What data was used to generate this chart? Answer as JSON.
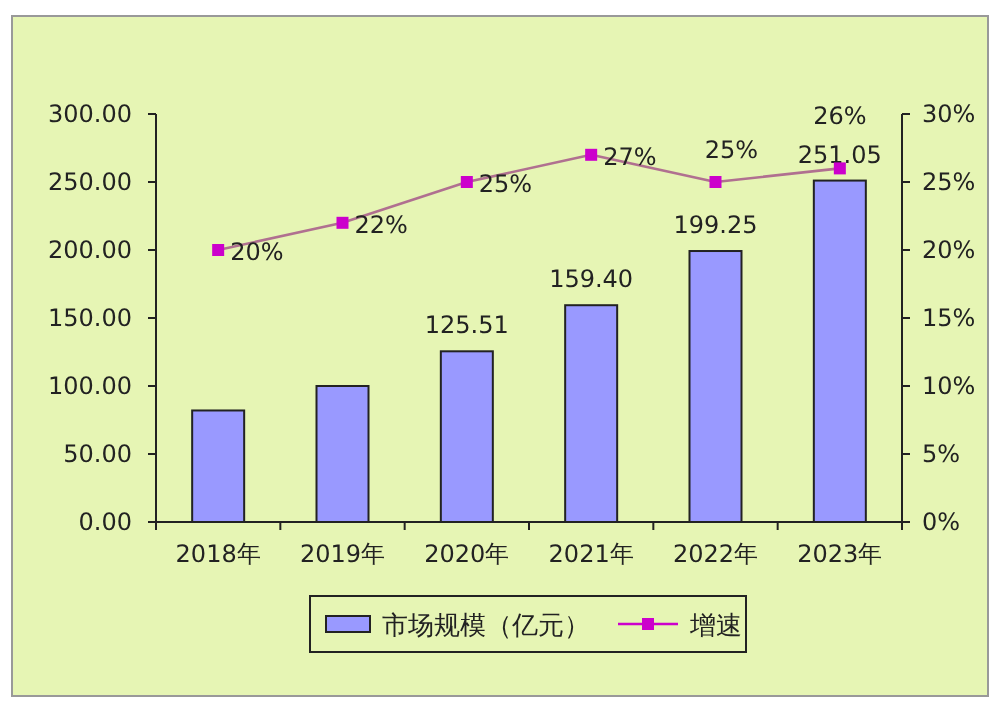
{
  "chart_data": {
    "type": "bar",
    "categories": [
      "2018年",
      "2019年",
      "2020年",
      "2021年",
      "2022年",
      "2023年"
    ],
    "series": [
      {
        "name": "市场规模（亿元）",
        "color": "#9999ff",
        "values": [
          82,
          100,
          125.51,
          159.4,
          199.25,
          251.05
        ],
        "value_labels": [
          null,
          null,
          "125.51",
          "159.40",
          "199.25",
          "251.05"
        ]
      },
      {
        "name": "增速",
        "type": "line",
        "axis": "y2",
        "color": "#cc00cc",
        "marker": "square",
        "values": [
          20,
          22,
          25,
          27,
          25,
          26
        ],
        "value_labels": [
          "20%",
          "22%",
          "25%",
          "27%",
          "25%",
          "26%"
        ]
      }
    ],
    "ylim": [
      0,
      300
    ],
    "yticks": [
      {
        "value": 0,
        "label": "0.00"
      },
      {
        "value": 50,
        "label": "50.00"
      },
      {
        "value": 100,
        "label": "100.00"
      },
      {
        "value": 150,
        "label": "150.00"
      },
      {
        "value": 200,
        "label": "200.00"
      },
      {
        "value": 250,
        "label": "250.00"
      },
      {
        "value": 300,
        "label": "300.00"
      }
    ],
    "y2lim": [
      0,
      30
    ],
    "y2ticks": [
      {
        "value": 0,
        "label": "0%"
      },
      {
        "value": 5,
        "label": "5%"
      },
      {
        "value": 10,
        "label": "10%"
      },
      {
        "value": 15,
        "label": "15%"
      },
      {
        "value": 20,
        "label": "20%"
      },
      {
        "value": 25,
        "label": "25%"
      },
      {
        "value": 30,
        "label": "30%"
      }
    ],
    "grid": false,
    "legend": "bottom"
  }
}
